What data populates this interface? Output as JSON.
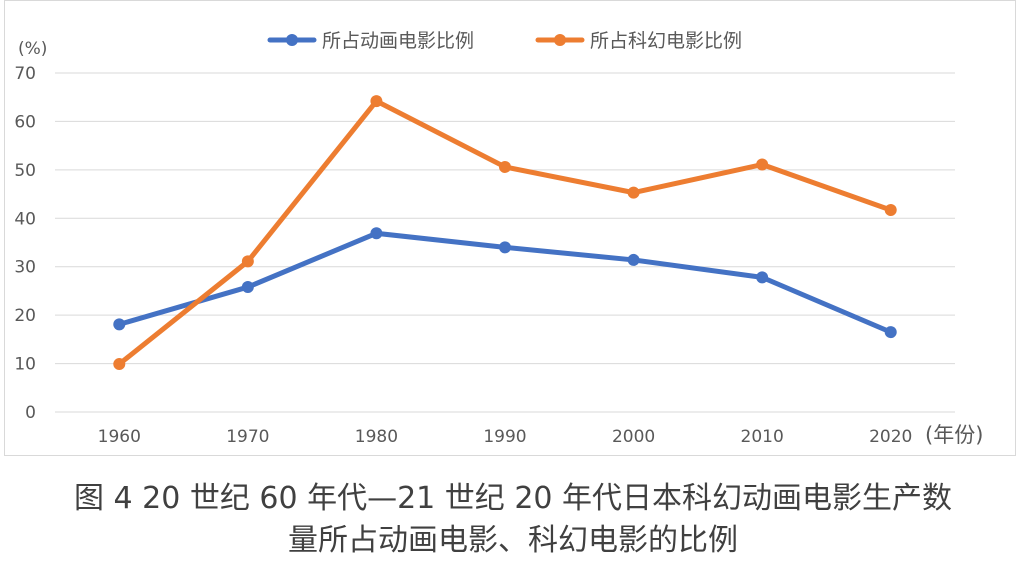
{
  "chart_data": {
    "type": "line",
    "ylabel": "(%)",
    "xlabel": "(年份)",
    "categories": [
      "1960",
      "1970",
      "1980",
      "1990",
      "2000",
      "2010",
      "2020"
    ],
    "ylim": [
      0,
      70
    ],
    "yticks": [
      "0",
      "10",
      "20",
      "30",
      "40",
      "50",
      "60",
      "70"
    ],
    "grid": true,
    "legend_position": "top-center",
    "series": [
      {
        "name": "所占动画电影比例",
        "color": "#4472c4",
        "values": [
          18.1,
          25.8,
          36.9,
          34.0,
          31.4,
          27.8,
          16.5
        ]
      },
      {
        "name": "所占科幻电影比例",
        "color": "#ed7d31",
        "values": [
          9.9,
          31.1,
          64.2,
          50.6,
          45.3,
          51.1,
          41.7
        ]
      }
    ]
  },
  "caption": {
    "line1": "图 4  20 世纪 60 年代—21 世纪 20 年代日本科幻动画电影生产数",
    "line2": "量所占动画电影、科幻电影的比例"
  }
}
